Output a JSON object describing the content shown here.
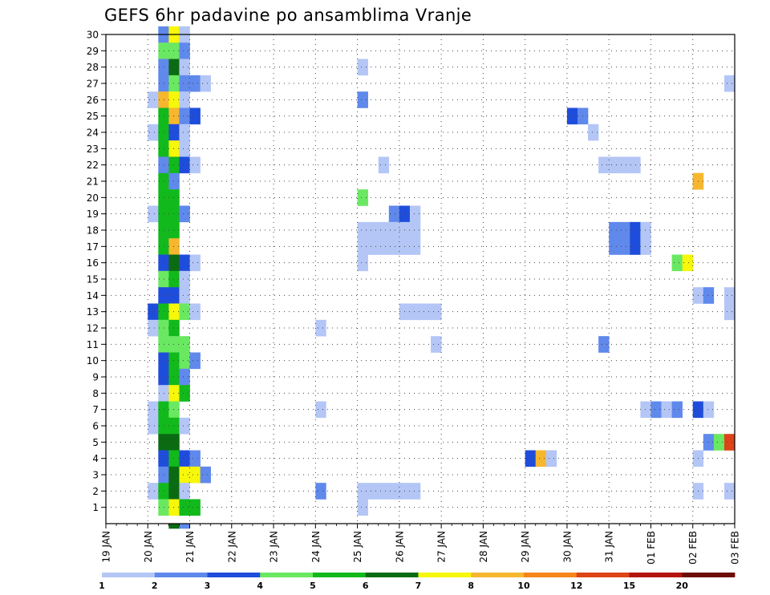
{
  "chart_data": {
    "type": "heatmap",
    "title": "GEFS 6hr padavine po ansamblima Vranje",
    "x_tick_labels": [
      "19 JAN",
      "20 JAN",
      "21 JAN",
      "22 JAN",
      "23 JAN",
      "24 JAN",
      "25 JAN",
      "26 JAN",
      "27 JAN",
      "28 JAN",
      "29 JAN",
      "30 JAN",
      "31 JAN",
      "01 FEB",
      "02 FEB",
      "03 FEB"
    ],
    "y_tick_labels": [
      "1",
      "2",
      "3",
      "4",
      "5",
      "6",
      "7",
      "8",
      "9",
      "10",
      "11",
      "12",
      "13",
      "14",
      "15",
      "16",
      "17",
      "18",
      "19",
      "20",
      "21",
      "22",
      "23",
      "24",
      "25",
      "26",
      "27",
      "28",
      "29",
      "30"
    ],
    "x_range": [
      "19 JAN 00",
      "03 FEB 00"
    ],
    "y_range": [
      0,
      30
    ],
    "x_step_hours": 6,
    "grid": true,
    "legend": {
      "placement": "bottom",
      "thresholds": [
        "1",
        "2",
        "3",
        "4",
        "5",
        "6",
        "7",
        "8",
        "10",
        "12",
        "15",
        "20"
      ],
      "colors": [
        "#b4c6f6",
        "#6089ec",
        "#1f4ddb",
        "#6ae862",
        "#12b91c",
        "#0b6b12",
        "#f6f70a",
        "#f6b72e",
        "#f6861a",
        "#de4418",
        "#b4140e",
        "#6e0c06"
      ]
    },
    "cells": [
      [
        30,
        "20 JAN 06",
        2
      ],
      [
        30,
        "20 JAN 12",
        7
      ],
      [
        30,
        "20 JAN 18",
        1
      ],
      [
        29,
        "20 JAN 06",
        4
      ],
      [
        29,
        "20 JAN 12",
        4
      ],
      [
        29,
        "20 JAN 18",
        2
      ],
      [
        28,
        "20 JAN 06",
        2
      ],
      [
        28,
        "20 JAN 12",
        6
      ],
      [
        28,
        "20 JAN 18",
        1
      ],
      [
        28,
        "25 JAN 00",
        1
      ],
      [
        27,
        "20 JAN 06",
        2
      ],
      [
        27,
        "20 JAN 12",
        4
      ],
      [
        27,
        "20 JAN 18",
        2
      ],
      [
        27,
        "21 JAN 00",
        2
      ],
      [
        27,
        "21 JAN 06",
        1
      ],
      [
        27,
        "02 FEB 18",
        1
      ],
      [
        26,
        "19 JAN 24",
        1
      ],
      [
        26,
        "20 JAN 06",
        8
      ],
      [
        26,
        "20 JAN 12",
        7
      ],
      [
        26,
        "20 JAN 18",
        1
      ],
      [
        26,
        "25 JAN 00",
        2
      ],
      [
        25,
        "20 JAN 06",
        5
      ],
      [
        25,
        "20 JAN 12",
        8
      ],
      [
        25,
        "20 JAN 18",
        2
      ],
      [
        25,
        "21 JAN 00",
        3
      ],
      [
        25,
        "30 JAN 00",
        3
      ],
      [
        25,
        "30 JAN 06",
        2
      ],
      [
        24,
        "19 JAN 24",
        1
      ],
      [
        24,
        "20 JAN 06",
        5
      ],
      [
        24,
        "20 JAN 12",
        3
      ],
      [
        24,
        "20 JAN 18",
        1
      ],
      [
        24,
        "30 JAN 12",
        1
      ],
      [
        23,
        "20 JAN 06",
        5
      ],
      [
        23,
        "20 JAN 12",
        7
      ],
      [
        23,
        "20 JAN 18",
        1
      ],
      [
        22,
        "20 JAN 06",
        2
      ],
      [
        22,
        "20 JAN 12",
        5
      ],
      [
        22,
        "20 JAN 18",
        3
      ],
      [
        22,
        "21 JAN 00",
        1
      ],
      [
        22,
        "25 JAN 12",
        1
      ],
      [
        22,
        "30 JAN 18",
        1
      ],
      [
        22,
        "31 JAN 00",
        1
      ],
      [
        22,
        "31 JAN 06",
        1
      ],
      [
        22,
        "31 JAN 12",
        1
      ],
      [
        21,
        "20 JAN 06",
        5
      ],
      [
        21,
        "20 JAN 12",
        2
      ],
      [
        21,
        "01 FEB 24",
        8
      ],
      [
        21,
        "02 FEB 00",
        8
      ],
      [
        20,
        "20 JAN 06",
        5
      ],
      [
        20,
        "20 JAN 12",
        5
      ],
      [
        20,
        "25 JAN 00",
        4
      ],
      [
        19,
        "19 JAN 24",
        1
      ],
      [
        19,
        "20 JAN 06",
        5
      ],
      [
        19,
        "20 JAN 12",
        5
      ],
      [
        19,
        "20 JAN 18",
        2
      ],
      [
        19,
        "25 JAN 18",
        2
      ],
      [
        19,
        "26 JAN 00",
        3
      ],
      [
        19,
        "26 JAN 06",
        1
      ],
      [
        18,
        "20 JAN 06",
        5
      ],
      [
        18,
        "20 JAN 12",
        5
      ],
      [
        18,
        "25 JAN 00",
        1
      ],
      [
        18,
        "25 JAN 06",
        1
      ],
      [
        18,
        "25 JAN 12",
        1
      ],
      [
        18,
        "25 JAN 18",
        1
      ],
      [
        18,
        "26 JAN 00",
        1
      ],
      [
        18,
        "26 JAN 06",
        1
      ],
      [
        18,
        "31 JAN 00",
        2
      ],
      [
        18,
        "31 JAN 06",
        2
      ],
      [
        18,
        "31 JAN 12",
        3
      ],
      [
        18,
        "31 JAN 18",
        1
      ],
      [
        17,
        "20 JAN 06",
        5
      ],
      [
        17,
        "20 JAN 12",
        8
      ],
      [
        17,
        "25 JAN 00",
        1
      ],
      [
        17,
        "25 JAN 06",
        1
      ],
      [
        17,
        "25 JAN 12",
        1
      ],
      [
        17,
        "25 JAN 18",
        1
      ],
      [
        17,
        "26 JAN 00",
        1
      ],
      [
        17,
        "26 JAN 06",
        1
      ],
      [
        17,
        "31 JAN 00",
        2
      ],
      [
        17,
        "31 JAN 06",
        2
      ],
      [
        17,
        "31 JAN 12",
        3
      ],
      [
        17,
        "31 JAN 18",
        1
      ],
      [
        16,
        "20 JAN 06",
        3
      ],
      [
        16,
        "20 JAN 12",
        6
      ],
      [
        16,
        "20 JAN 18",
        3
      ],
      [
        16,
        "21 JAN 00",
        1
      ],
      [
        16,
        "25 JAN 00",
        1
      ],
      [
        16,
        "01 FEB 12",
        4
      ],
      [
        16,
        "01 FEB 18",
        7
      ],
      [
        15,
        "20 JAN 06",
        4
      ],
      [
        15,
        "20 JAN 12",
        5
      ],
      [
        15,
        "20 JAN 18",
        1
      ],
      [
        14,
        "20 JAN 06",
        3
      ],
      [
        14,
        "20 JAN 12",
        3
      ],
      [
        14,
        "20 JAN 18",
        1
      ],
      [
        14,
        "01 FEB 24",
        1
      ],
      [
        14,
        "02 FEB 06",
        2
      ],
      [
        14,
        "02 FEB 18",
        1
      ],
      [
        13,
        "19 JAN 24",
        3
      ],
      [
        13,
        "20 JAN 06",
        5
      ],
      [
        13,
        "20 JAN 12",
        7
      ],
      [
        13,
        "20 JAN 18",
        4
      ],
      [
        13,
        "21 JAN 00",
        1
      ],
      [
        13,
        "26 JAN 00",
        1
      ],
      [
        13,
        "26 JAN 06",
        1
      ],
      [
        13,
        "26 JAN 12",
        1
      ],
      [
        13,
        "26 JAN 18",
        1
      ],
      [
        13,
        "02 FEB 18",
        1
      ],
      [
        12,
        "19 JAN 24",
        1
      ],
      [
        12,
        "20 JAN 06",
        4
      ],
      [
        12,
        "20 JAN 12",
        5
      ],
      [
        12,
        "23 JAN 24",
        1
      ],
      [
        11,
        "20 JAN 06",
        4
      ],
      [
        11,
        "20 JAN 12",
        4
      ],
      [
        11,
        "20 JAN 18",
        4
      ],
      [
        11,
        "26 JAN 18",
        1
      ],
      [
        11,
        "30 JAN 18",
        2
      ],
      [
        10,
        "20 JAN 06",
        3
      ],
      [
        10,
        "20 JAN 12",
        5
      ],
      [
        10,
        "20 JAN 18",
        4
      ],
      [
        10,
        "21 JAN 00",
        2
      ],
      [
        9,
        "20 JAN 06",
        3
      ],
      [
        9,
        "20 JAN 12",
        5
      ],
      [
        9,
        "20 JAN 18",
        2
      ],
      [
        8,
        "20 JAN 06",
        1
      ],
      [
        8,
        "20 JAN 12",
        7
      ],
      [
        8,
        "20 JAN 18",
        5
      ],
      [
        7,
        "19 JAN 24",
        1
      ],
      [
        7,
        "20 JAN 06",
        5
      ],
      [
        7,
        "20 JAN 12",
        4
      ],
      [
        7,
        "23 JAN 24",
        1
      ],
      [
        7,
        "31 JAN 18",
        1
      ],
      [
        7,
        "01 FEB 00",
        2
      ],
      [
        7,
        "01 FEB 06",
        1
      ],
      [
        7,
        "01 FEB 12",
        2
      ],
      [
        7,
        "01 FEB 24",
        3
      ],
      [
        7,
        "02 FEB 06",
        1
      ],
      [
        6,
        "19 JAN 24",
        1
      ],
      [
        6,
        "20 JAN 06",
        5
      ],
      [
        6,
        "20 JAN 12",
        5
      ],
      [
        6,
        "20 JAN 18",
        1
      ],
      [
        5,
        "20 JAN 06",
        6
      ],
      [
        5,
        "20 JAN 12",
        6
      ],
      [
        5,
        "02 FEB 06",
        2
      ],
      [
        5,
        "02 FEB 12",
        4
      ],
      [
        5,
        "02 FEB 18",
        10
      ],
      [
        4,
        "20 JAN 06",
        3
      ],
      [
        4,
        "20 JAN 12",
        5
      ],
      [
        4,
        "20 JAN 18",
        3
      ],
      [
        4,
        "21 JAN 00",
        2
      ],
      [
        4,
        "29 JAN 00",
        3
      ],
      [
        4,
        "29 JAN 06",
        8
      ],
      [
        4,
        "29 JAN 12",
        1
      ],
      [
        4,
        "01 FEB 24",
        1
      ],
      [
        3,
        "20 JAN 06",
        2
      ],
      [
        3,
        "20 JAN 12",
        6
      ],
      [
        3,
        "20 JAN 18",
        7
      ],
      [
        3,
        "21 JAN 00",
        7
      ],
      [
        3,
        "21 JAN 06",
        2
      ],
      [
        2,
        "19 JAN 24",
        1
      ],
      [
        2,
        "20 JAN 06",
        5
      ],
      [
        2,
        "20 JAN 12",
        6
      ],
      [
        2,
        "20 JAN 18",
        1
      ],
      [
        2,
        "23 JAN 24",
        2
      ],
      [
        2,
        "25 JAN 00",
        1
      ],
      [
        2,
        "25 JAN 06",
        1
      ],
      [
        2,
        "25 JAN 12",
        1
      ],
      [
        2,
        "25 JAN 18",
        1
      ],
      [
        2,
        "26 JAN 00",
        1
      ],
      [
        2,
        "26 JAN 06",
        1
      ],
      [
        2,
        "02 FEB 00",
        1
      ],
      [
        2,
        "02 FEB 18",
        1
      ],
      [
        1,
        "20 JAN 06",
        4
      ],
      [
        1,
        "20 JAN 12",
        7
      ],
      [
        1,
        "20 JAN 18",
        5
      ],
      [
        1,
        "21 JAN 00",
        5
      ],
      [
        1,
        "25 JAN 00",
        1
      ],
      [
        0,
        "20 JAN 12",
        6
      ],
      [
        0,
        "20 JAN 18",
        2
      ]
    ]
  }
}
